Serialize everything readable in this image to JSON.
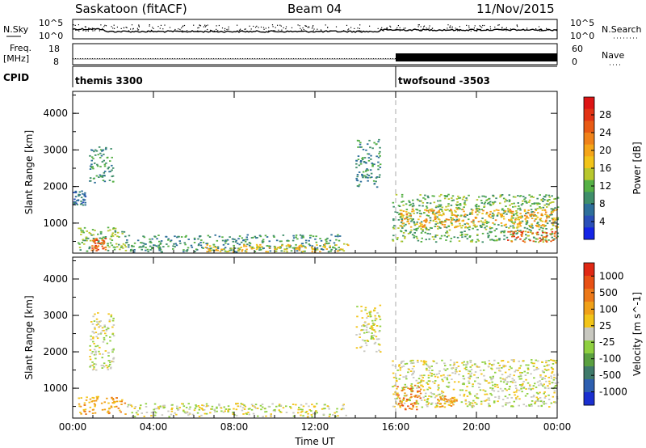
{
  "header": {
    "station": "Saskatoon (fitACF)",
    "beam": "Beam 04",
    "date": "11/Nov/2015"
  },
  "strip_labels": {
    "nsky": "N.Sky",
    "nsearch": "N.Search",
    "freq_line1": "Freq.",
    "freq_line2": "[MHz]",
    "nave": "Nave",
    "cpid": "CPID",
    "nsky_tick_hi": "10^5",
    "nsky_tick_lo": "10^0",
    "freq_tick_hi": "18",
    "freq_tick_lo": "8",
    "nave_tick_hi": "60",
    "nave_tick_lo": "0"
  },
  "cpid_modes": [
    {
      "label": "themis 3300",
      "start_hour": 0
    },
    {
      "label": "twofsound -3503",
      "start_hour": 16
    }
  ],
  "chart_data": [
    {
      "type": "heatmap",
      "title": "",
      "ylabel": "Slant Range [km]",
      "xlabel": "",
      "xlim_hours": [
        0,
        24
      ],
      "ylim": [
        180,
        4600
      ],
      "yticks": [
        "1000",
        "2000",
        "3000",
        "4000"
      ],
      "xticks": [
        "00:00",
        "04:00",
        "08:00",
        "12:00",
        "16:00",
        "20:00",
        "00:00"
      ],
      "colorbar": {
        "label": "Power [dB]",
        "ticks": [
          "4",
          "8",
          "12",
          "16",
          "20",
          "24",
          "28"
        ],
        "colors": [
          "#1424e6",
          "#2a4fb8",
          "#2e6f9a",
          "#3f8e6a",
          "#55b045",
          "#b8c72d",
          "#f2c419",
          "#f5a518",
          "#f08219",
          "#e85a14",
          "#e23214",
          "#dd1414"
        ]
      },
      "regions": [
        {
          "t0": 0.0,
          "t1": 0.6,
          "r0": 1500,
          "r1": 1900,
          "level": 2
        },
        {
          "t0": 0.8,
          "t1": 2.0,
          "r0": 2100,
          "r1": 3100,
          "level": 3
        },
        {
          "t0": 0.2,
          "t1": 2.6,
          "r0": 250,
          "r1": 900,
          "level": 4
        },
        {
          "t0": 0.9,
          "t1": 1.6,
          "r0": 250,
          "r1": 600,
          "level": 9
        },
        {
          "t0": 2.6,
          "t1": 13.2,
          "r0": 230,
          "r1": 700,
          "level": 3
        },
        {
          "t0": 6.5,
          "t1": 13.6,
          "r0": 230,
          "r1": 450,
          "level": 6
        },
        {
          "t0": 14.0,
          "t1": 15.2,
          "r0": 2000,
          "r1": 3300,
          "level": 3
        },
        {
          "t0": 15.8,
          "t1": 24.0,
          "r0": 500,
          "r1": 1800,
          "level": 4
        },
        {
          "t0": 16.2,
          "t1": 24.0,
          "r0": 900,
          "r1": 1400,
          "level": 7
        },
        {
          "t0": 21.5,
          "t1": 24.0,
          "r0": 500,
          "r1": 800,
          "level": 9
        }
      ]
    },
    {
      "type": "heatmap",
      "title": "",
      "ylabel": "Slant Range [km]",
      "xlabel": "Time UT",
      "xlim_hours": [
        0,
        24
      ],
      "ylim": [
        180,
        4600
      ],
      "yticks": [
        "1000",
        "2000",
        "3000",
        "4000"
      ],
      "xticks": [
        "00:00",
        "04:00",
        "08:00",
        "12:00",
        "16:00",
        "20:00",
        "00:00"
      ],
      "colorbar": {
        "label": "Velocity [m s^-1]",
        "ticks": [
          "1000",
          "500",
          "100",
          "25",
          "-25",
          "-100",
          "-500",
          "-1000"
        ],
        "colors": [
          "#1a2fd0",
          "#2e5fb0",
          "#3f7a6a",
          "#5aa040",
          "#8fd040",
          "#c8c8c0",
          "#f2c419",
          "#f0a018",
          "#ec7818",
          "#e85014",
          "#e02814"
        ]
      },
      "regions": [
        {
          "t0": 0.8,
          "t1": 2.0,
          "r0": 1500,
          "r1": 3100,
          "level": 5
        },
        {
          "t0": 0.2,
          "t1": 2.6,
          "r0": 300,
          "r1": 800,
          "level": 7
        },
        {
          "t0": 2.6,
          "t1": 13.5,
          "r0": 230,
          "r1": 600,
          "level": 5
        },
        {
          "t0": 14.0,
          "t1": 15.2,
          "r0": 2000,
          "r1": 3300,
          "level": 5
        },
        {
          "t0": 15.8,
          "t1": 24.0,
          "r0": 500,
          "r1": 1800,
          "level": 5
        },
        {
          "t0": 16.0,
          "t1": 17.2,
          "r0": 400,
          "r1": 1100,
          "level": 8
        },
        {
          "t0": 18.0,
          "t1": 19.0,
          "r0": 500,
          "r1": 800,
          "level": 7
        }
      ]
    }
  ]
}
